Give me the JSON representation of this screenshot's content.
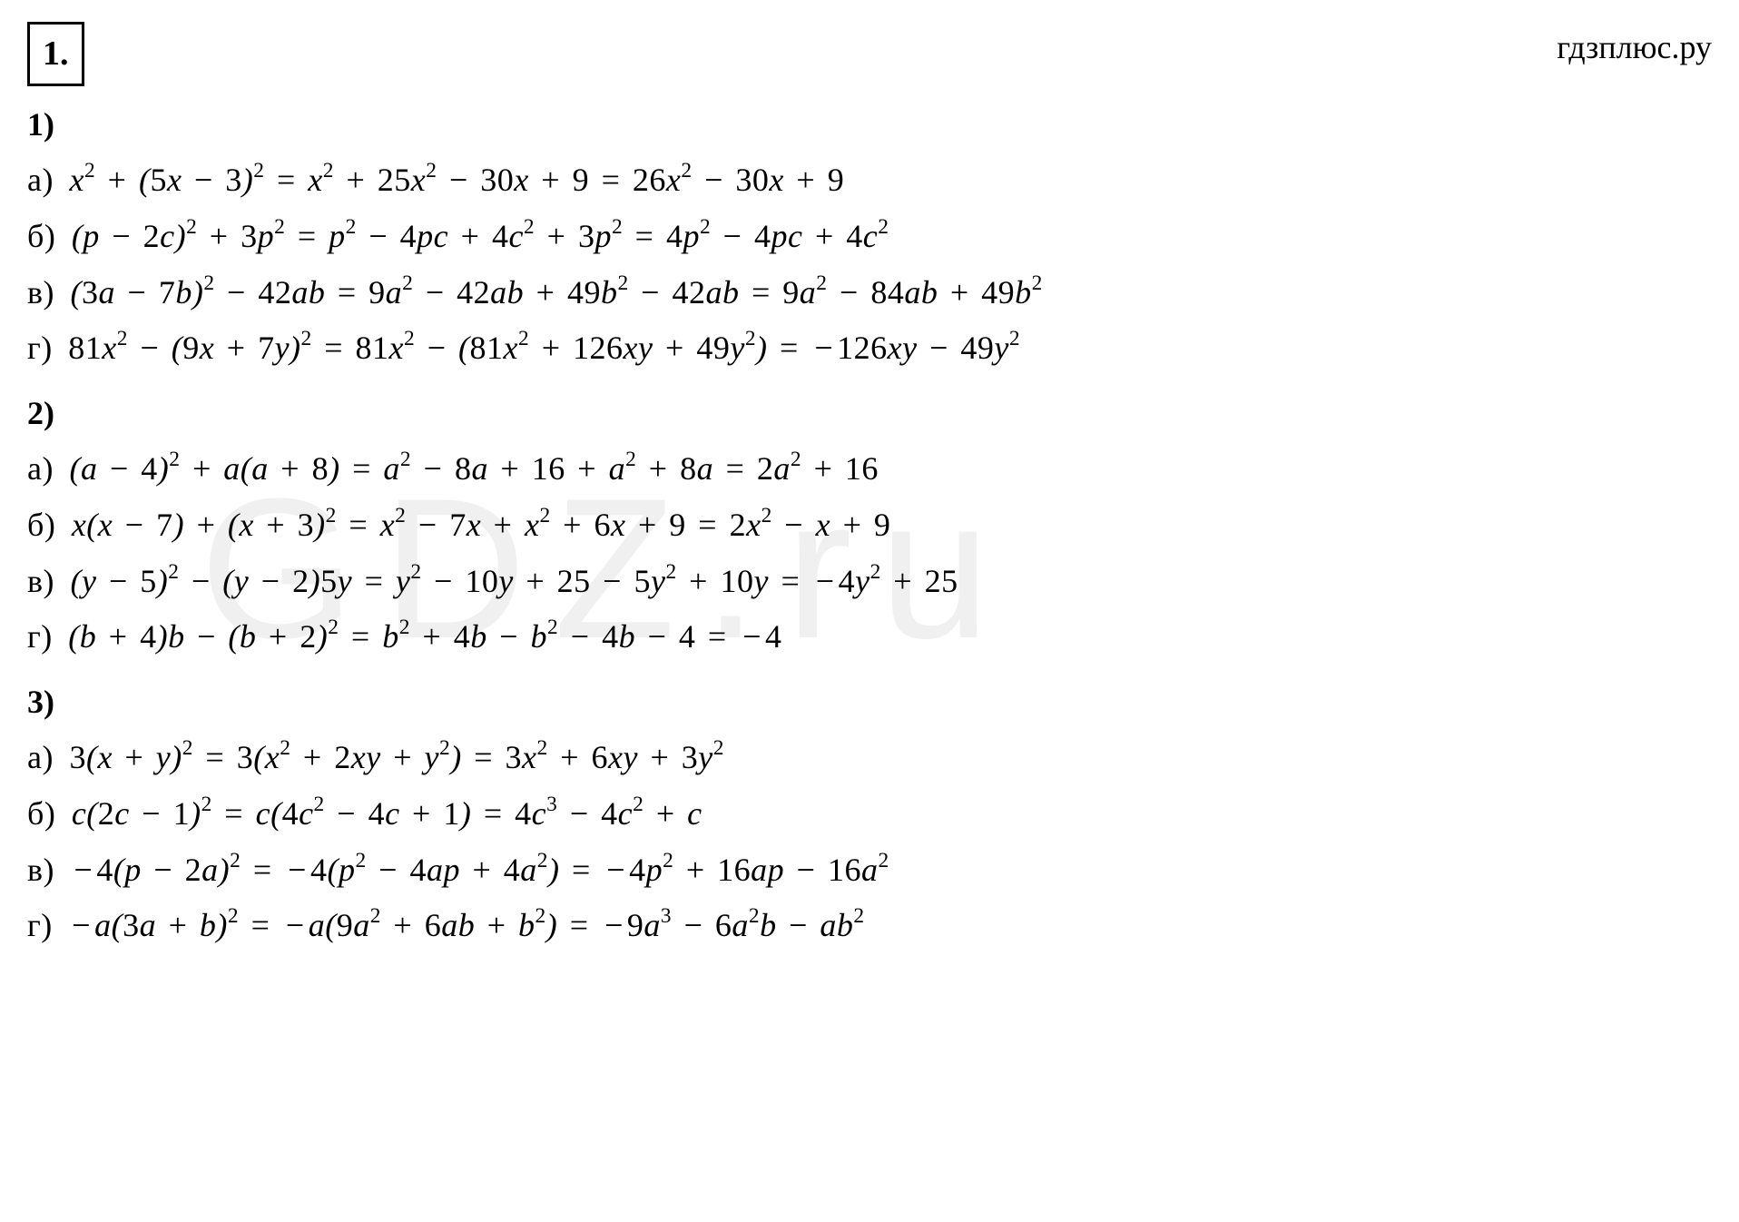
{
  "problem_number": "1.",
  "site_name": "гдзплюс.ру",
  "bg_watermark": "GDZ.ru",
  "sections": {
    "s1": {
      "label": "1)",
      "a": {
        "label": "а)",
        "expr": "x² + (5x − 3)² = x² + 25x² − 30x + 9 = 26x² − 30x + 9"
      },
      "b": {
        "label": "б)",
        "expr": "(p − 2c)² + 3p² = p² − 4pc + 4c² + 3p² = 4p² − 4pc + 4c²"
      },
      "v": {
        "label": "в)",
        "expr": "(3a − 7b)² − 42ab = 9a² − 42ab + 49b² − 42ab = 9a² − 84ab + 49b²"
      },
      "g": {
        "label": "г)",
        "expr": "81x² − (9x + 7y)² = 81x² − (81x² + 126xy + 49y²) = −126xy − 49y²"
      }
    },
    "s2": {
      "label": "2)",
      "a": {
        "label": "а)",
        "expr": "(a − 4)² + a(a + 8) = a² − 8a + 16 + a² + 8a = 2a² + 16"
      },
      "b": {
        "label": "б)",
        "expr": "x(x − 7) + (x + 3)² = x² − 7x + x² + 6x + 9 = 2x² − x + 9"
      },
      "v": {
        "label": "в)",
        "expr": "(y − 5)² − (y − 2)5y = y² − 10y + 25 − 5y² + 10y = −4y² + 25"
      },
      "g": {
        "label": "г)",
        "expr": "(b + 4)b − (b + 2)² = b² + 4b − b² − 4b − 4 = −4"
      }
    },
    "s3": {
      "label": "3)",
      "a": {
        "label": "а)",
        "expr": "3(x + y)² = 3(x² + 2xy + y²) = 3x² + 6xy + 3y²"
      },
      "b": {
        "label": "б)",
        "expr": "c(2c − 1)² = c(4c² − 4c + 1) = 4c³ − 4c² + c"
      },
      "v": {
        "label": "в)",
        "expr": "−4(p − 2a)² = −4(p² − 4ap + 4a²) = −4p² + 16ap − 16a²"
      },
      "g": {
        "label": "г)",
        "expr": "−a(3a + b)² = −a(9a² + 6ab + b²) = −9a³ − 6a²b − ab²"
      }
    }
  }
}
